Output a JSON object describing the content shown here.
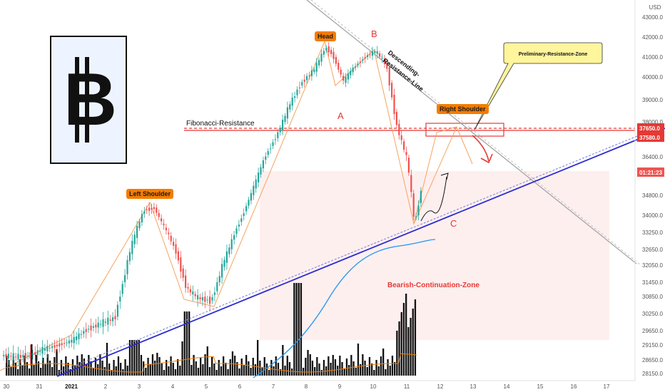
{
  "chart_data": {
    "type": "candlestick",
    "currency": "USD",
    "y_axis_ticks": [
      43000.0,
      42000.0,
      41000.0,
      40000.0,
      39000.0,
      38000.0,
      36400.0,
      34800.0,
      34000.0,
      33250.0,
      32650.0,
      32050.0,
      31450.0,
      30850.0,
      30250.0,
      29650.0,
      29150.0,
      28650.0,
      28150.0
    ],
    "price_tags": [
      {
        "value": "37650.0",
        "color": "#e53935"
      },
      {
        "value": "37580.0",
        "color": "#e53935"
      },
      {
        "value": "01:21:23",
        "color": "#ef5350"
      }
    ],
    "x_axis_ticks": [
      "30",
      "31",
      "2021",
      "2",
      "3",
      "4",
      "5",
      "6",
      "7",
      "8",
      "9",
      "10",
      "11",
      "12",
      "13",
      "14",
      "15",
      "16",
      "17"
    ],
    "annotations": {
      "left_shoulder": "Left Shoulder",
      "head": "Head",
      "right_shoulder": "Right Shoulder",
      "point_a": "A",
      "point_b": "B",
      "point_c": "C",
      "fibonacci": "Fibonacci-Resistance",
      "descending_line_1": "Descending-",
      "descending_line_2": "Resistance-Line",
      "callout": "Preliminary-Resistance-Zone",
      "bearish_zone": "Bearish-Continuation-Zone"
    },
    "colors": {
      "up": "#26a69a",
      "down": "#ef5350",
      "annotation_orange": "#f57c00",
      "trendline": "#2c2ccf",
      "ma": "#2196f3",
      "fib_line": "#e53935"
    }
  },
  "logo": {
    "symbol": "B"
  }
}
